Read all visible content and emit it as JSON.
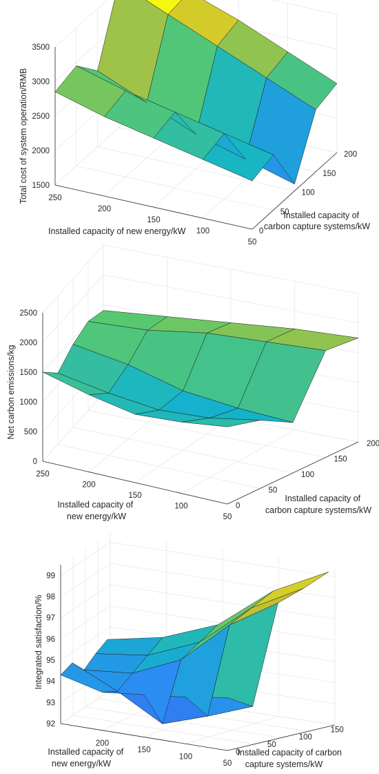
{
  "chart_data": [
    {
      "type": "surface",
      "title": "",
      "xlabel": "Installed capacity of new energy/kW",
      "ylabel_lines": [
        "Installed capacity of",
        "carbon capture systems/kW"
      ],
      "zlabel": "Total cost of system operation/RMB",
      "x_ticks": [
        "250",
        "200",
        "150",
        "100",
        "50"
      ],
      "y_ticks": [
        "0",
        "50",
        "100",
        "150",
        "200"
      ],
      "z_ticks": [
        "1500",
        "2000",
        "2500",
        "3000",
        "3500"
      ],
      "xlim": [
        50,
        250
      ],
      "ylim": [
        0,
        200
      ],
      "zlim": [
        1500,
        3500
      ],
      "colormap": "parula",
      "x": [
        50,
        100,
        150,
        200,
        250
      ],
      "y": [
        0,
        50,
        100,
        150,
        200
      ],
      "z": [
        [
          2200,
          2350,
          2500,
          2650,
          2850
        ],
        [
          2300,
          2450,
          2600,
          2750,
          2950
        ],
        [
          1600,
          1800,
          2000,
          2300,
          2600
        ],
        [
          2400,
          2700,
          3000,
          3300,
          3600
        ],
        [
          2500,
          2800,
          3100,
          3350,
          3650
        ]
      ]
    },
    {
      "type": "surface",
      "title": "",
      "xlabel_lines": [
        "Installed capacity of",
        "new energy/kW"
      ],
      "ylabel_lines": [
        "Installed capacity of",
        "carbon capture systems/kW"
      ],
      "zlabel": "Net carbon emissions/kg",
      "x_ticks": [
        "250",
        "200",
        "150",
        "100",
        "50"
      ],
      "y_ticks": [
        "0",
        "50",
        "100",
        "150",
        "200"
      ],
      "z_ticks": [
        "0",
        "500",
        "1000",
        "1500",
        "2000",
        "2500"
      ],
      "xlim": [
        50,
        250
      ],
      "ylim": [
        0,
        200
      ],
      "zlim": [
        0,
        2500
      ],
      "colormap": "parula",
      "x": [
        50,
        100,
        150,
        200,
        250
      ],
      "y": [
        0,
        50,
        100,
        150,
        200
      ],
      "z": [
        [
          1300,
          1200,
          1150,
          1300,
          1500
        ],
        [
          1150,
          1000,
          950,
          1050,
          1200
        ],
        [
          850,
          900,
          1000,
          1250,
          1400
        ],
        [
          1800,
          1750,
          1700,
          1550,
          1500
        ],
        [
          1750,
          1700,
          1600,
          1500,
          1400
        ]
      ]
    },
    {
      "type": "surface",
      "title": "",
      "xlabel_lines": [
        "Installed capacity of",
        "new energy/kW"
      ],
      "ylabel_lines": [
        "Installed capacity of carbon",
        "capture systems/kW"
      ],
      "zlabel": "Integrated satisfaction/%",
      "x_ticks": [
        "200",
        "150",
        "100",
        "50"
      ],
      "y_ticks": [
        "0",
        "50",
        "100",
        "150"
      ],
      "z_ticks": [
        "92",
        "93",
        "94",
        "95",
        "96",
        "97",
        "98",
        "99"
      ],
      "xlim": [
        50,
        250
      ],
      "ylim": [
        0,
        170
      ],
      "zlim": [
        92,
        99.5
      ],
      "colormap": "parula",
      "x": [
        50,
        100,
        150,
        200,
        250
      ],
      "y": [
        0,
        40,
        80,
        120,
        160
      ],
      "z": [
        [
          94.5,
          94.2,
          94.0,
          93.8,
          94.3
        ],
        [
          93.8,
          93.0,
          92.3,
          93.5,
          94.5
        ],
        [
          98.4,
          97.0,
          95.0,
          94.0,
          93.8
        ],
        [
          98.8,
          97.5,
          95.5,
          94.5,
          94.2
        ],
        [
          99.3,
          98.0,
          96.0,
          95.0,
          94.5
        ]
      ]
    }
  ]
}
